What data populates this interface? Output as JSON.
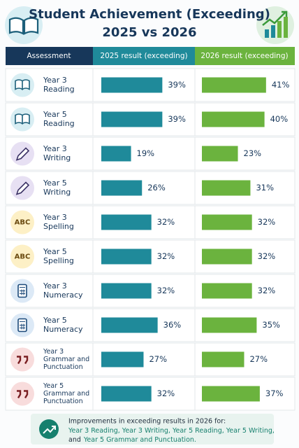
{
  "header": {
    "title_lines": [
      "Student Achievement (Exceeding)",
      "2025 vs 2026"
    ]
  },
  "table": {
    "columns": [
      "Assessment",
      "2025 result (exceeding)",
      "2026 result (exceeding)"
    ],
    "rows": [
      {
        "label_lines": [
          "Year 3",
          "Reading"
        ],
        "result_2025": 39,
        "label_2025": "39%",
        "result_2026": 41,
        "label_2026": "41%"
      },
      {
        "label_lines": [
          "Year 5",
          "Reading"
        ],
        "result_2025": 39,
        "label_2025": "39%",
        "result_2026": 40,
        "label_2026": "40%"
      },
      {
        "label_lines": [
          "Year 3",
          "Writing"
        ],
        "result_2025": 19,
        "label_2025": "19%",
        "result_2026": 23,
        "label_2026": "23%"
      },
      {
        "label_lines": [
          "Year 5",
          "Writing"
        ],
        "result_2025": 26,
        "label_2025": "26%",
        "result_2026": 31,
        "label_2026": "31%"
      },
      {
        "label_lines": [
          "Year 3",
          "Spelling"
        ],
        "icon_text": "ABC",
        "result_2025": 32,
        "label_2025": "32%",
        "result_2026": 32,
        "label_2026": "32%"
      },
      {
        "label_lines": [
          "Year 5",
          "Spelling"
        ],
        "icon_text": "ABC",
        "result_2025": 32,
        "label_2025": "32%",
        "result_2026": 32,
        "label_2026": "32%"
      },
      {
        "label_lines": [
          "Year 3",
          "Numeracy"
        ],
        "result_2025": 32,
        "label_2025": "32%",
        "result_2026": 32,
        "label_2026": "32%"
      },
      {
        "label_lines": [
          "Year 5",
          "Numeracy"
        ],
        "result_2025": 36,
        "label_2025": "36%",
        "result_2026": 35,
        "label_2026": "35%"
      },
      {
        "label_lines": [
          "Year 3",
          "Grammar and",
          "Punctuation"
        ],
        "result_2025": 27,
        "label_2025": "27%",
        "result_2026": 27,
        "label_2026": "27%"
      },
      {
        "label_lines": [
          "Year 5",
          "Grammar and",
          "Punctuation"
        ],
        "result_2025": 32,
        "label_2025": "32%",
        "result_2026": 37,
        "label_2026": "37%"
      }
    ]
  },
  "footer": {
    "intro": "Improvements in exceeding results in 2026 for:",
    "lines": [
      [
        {
          "text": "Year 3 Reading, Year 3 Writing, Year 5 Reading, Year 5 Writing,",
          "highlight": true
        }
      ],
      [
        {
          "text": "and",
          "highlight": false
        },
        {
          "text": "Year 5 Grammar and Punctuation.",
          "highlight": true
        }
      ]
    ]
  }
}
